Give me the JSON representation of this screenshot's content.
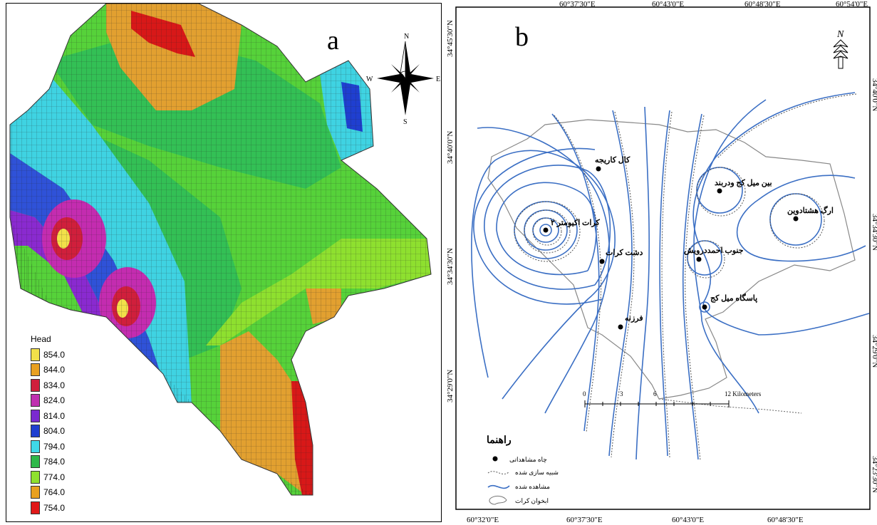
{
  "panel_a": {
    "letter": "a",
    "compass": {
      "n": "N",
      "s": "S",
      "e": "E",
      "w": "W"
    },
    "legend": {
      "title": "Head",
      "items": [
        {
          "label": "854.0",
          "color": "#f2e04a"
        },
        {
          "label": "844.0",
          "color": "#e8a020"
        },
        {
          "label": "834.0",
          "color": "#d01f3c"
        },
        {
          "label": "824.0",
          "color": "#c030b0"
        },
        {
          "label": "814.0",
          "color": "#7a2ad0"
        },
        {
          "label": "804.0",
          "color": "#1f3fd0"
        },
        {
          "label": "794.0",
          "color": "#3fd8e8"
        },
        {
          "label": "784.0",
          "color": "#2fb84a"
        },
        {
          "label": "774.0",
          "color": "#8fe02f"
        },
        {
          "label": "764.0",
          "color": "#e8a020"
        },
        {
          "label": "754.0",
          "color": "#e01818"
        }
      ]
    }
  },
  "panel_b": {
    "letter": "b",
    "north": "N",
    "top_ticks": [
      "34°45'30\"N",
      "60°37'30\"E",
      "60°43'0\"E",
      "60°48'30\"E",
      "60°54'0\"E"
    ],
    "bottom_ticks": [
      "60°32'0\"E",
      "60°37'30\"E",
      "60°43'0\"E",
      "60°48'30\"E"
    ],
    "left_ticks": [
      "34°40'0\"N",
      "34°34'30\"N",
      "34°29'0\"N"
    ],
    "right_ticks": [
      "34°40'0\"N",
      "34°34'30\"N",
      "34°29'0\"N",
      "34°23'30\"N"
    ],
    "wells": [
      {
        "name": "کال کاریجه"
      },
      {
        "name": "بین میل کج ودربند"
      },
      {
        "name": "ارگ هشتادوین"
      },
      {
        "name": "کرات اکیومتر ۲"
      },
      {
        "name": "دشت کرات"
      },
      {
        "name": "جنوب احمددرویش"
      },
      {
        "name": "پاسگاه میل کج"
      },
      {
        "name": "فرزنه"
      }
    ],
    "legend": {
      "title": "راهنما",
      "items": [
        "چاه مشاهداتی",
        "شبیه سازی شده",
        "مشاهده شده",
        "ابخوان کرات"
      ]
    },
    "scale": {
      "ticks": [
        "0",
        "3",
        "6",
        "12 Kilometers"
      ]
    },
    "colors": {
      "observed": "#3b6fc4",
      "simulated": "#555555",
      "boundary": "#777777"
    }
  }
}
